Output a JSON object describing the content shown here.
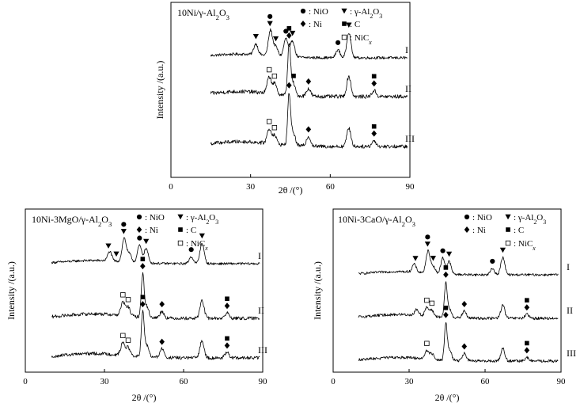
{
  "figure": {
    "xlabel": "2θ /(°)",
    "ylabel": "Intensity /(a.u.)",
    "legend": {
      "nio": "NiO",
      "al2o3": "γ-Al2O3",
      "ni": "Ni",
      "c": "C",
      "nicx": "NiCx"
    },
    "pattern_labels": [
      "I",
      "II",
      "III"
    ]
  },
  "chart_data": [
    {
      "type": "line",
      "title": "10Ni/γ-Al2O3",
      "xlabel": "2θ /(°)",
      "ylabel": "Intensity /(a.u.)",
      "xlim": [
        0,
        90
      ],
      "xticks": [
        0,
        30,
        60,
        90
      ],
      "series": [
        {
          "name": "I",
          "peaks": [
            [
              32.0,
              0.3
            ],
            [
              37.5,
              0.7
            ],
            [
              39.5,
              0.25
            ],
            [
              43.3,
              0.5
            ],
            [
              45.8,
              0.45
            ],
            [
              62.9,
              0.22
            ],
            [
              67.0,
              0.7
            ]
          ],
          "markers": [
            {
              "type": "al2o3",
              "x": 32.0
            },
            {
              "type": "al2o3",
              "x": 37.3
            },
            {
              "type": "nio",
              "x": 37.3,
              "stack": 1
            },
            {
              "type": "al2o3",
              "x": 39.5
            },
            {
              "type": "nio",
              "x": 43.3
            },
            {
              "type": "al2o3",
              "x": 45.8
            },
            {
              "type": "nio",
              "x": 62.9
            },
            {
              "type": "al2o3",
              "x": 67.0
            }
          ]
        },
        {
          "name": "II",
          "peaks": [
            [
              37.0,
              0.32
            ],
            [
              39.0,
              0.2
            ],
            [
              44.5,
              1.0
            ],
            [
              46.0,
              0.25
            ],
            [
              51.8,
              0.15
            ],
            [
              67.0,
              0.4
            ],
            [
              76.5,
              0.12
            ]
          ],
          "markers": [
            {
              "type": "nicx",
              "x": 37.0
            },
            {
              "type": "nicx",
              "x": 39.0
            },
            {
              "type": "ni",
              "x": 44.5
            },
            {
              "type": "c",
              "x": 44.5,
              "stack": 1
            },
            {
              "type": "c",
              "x": 46.2
            },
            {
              "type": "ni",
              "x": 51.8
            },
            {
              "type": "ni",
              "x": 76.5
            },
            {
              "type": "c",
              "x": 76.5,
              "stack": 1
            }
          ]
        },
        {
          "name": "III",
          "peaks": [
            [
              37.0,
              0.3
            ],
            [
              39.0,
              0.18
            ],
            [
              44.5,
              1.05
            ],
            [
              46.0,
              0.28
            ],
            [
              51.8,
              0.2
            ],
            [
              67.0,
              0.38
            ],
            [
              76.5,
              0.12
            ]
          ],
          "markers": [
            {
              "type": "nicx",
              "x": 37.0
            },
            {
              "type": "nicx",
              "x": 39.0
            },
            {
              "type": "ni",
              "x": 44.5
            },
            {
              "type": "ni",
              "x": 51.8
            },
            {
              "type": "ni",
              "x": 76.5
            },
            {
              "type": "c",
              "x": 76.5,
              "stack": 1
            }
          ]
        }
      ]
    },
    {
      "type": "line",
      "title": "10Ni-3MgO/γ-Al2O3",
      "xlabel": "2θ /(°)",
      "ylabel": "Intensity /(a.u.)",
      "xlim": [
        0,
        90
      ],
      "xticks": [
        0,
        30,
        60,
        90
      ],
      "series": [
        {
          "name": "I",
          "peaks": [
            [
              32.0,
              0.3
            ],
            [
              37.5,
              0.75
            ],
            [
              39.5,
              0.25
            ],
            [
              43.3,
              0.55
            ],
            [
              45.8,
              0.45
            ],
            [
              62.9,
              0.22
            ],
            [
              67.0,
              0.65
            ]
          ],
          "markers": [
            {
              "type": "al2o3",
              "x": 31.5
            },
            {
              "type": "al2o3",
              "x": 34.5
            },
            {
              "type": "al2o3",
              "x": 37.3
            },
            {
              "type": "nio",
              "x": 37.3,
              "stack": 1
            },
            {
              "type": "nio",
              "x": 43.3
            },
            {
              "type": "al2o3",
              "x": 45.8
            },
            {
              "type": "nio",
              "x": 62.9
            },
            {
              "type": "al2o3",
              "x": 67.0
            }
          ]
        },
        {
          "name": "II",
          "peaks": [
            [
              37.0,
              0.3
            ],
            [
              39.0,
              0.2
            ],
            [
              44.5,
              0.95
            ],
            [
              46.0,
              0.25
            ],
            [
              51.8,
              0.15
            ],
            [
              67.0,
              0.4
            ],
            [
              76.5,
              0.12
            ]
          ],
          "markers": [
            {
              "type": "nicx",
              "x": 37.0
            },
            {
              "type": "nicx",
              "x": 39.0
            },
            {
              "type": "ni",
              "x": 44.5
            },
            {
              "type": "c",
              "x": 44.5,
              "stack": 1
            },
            {
              "type": "ni",
              "x": 51.8
            },
            {
              "type": "ni",
              "x": 76.5
            },
            {
              "type": "c",
              "x": 76.5,
              "stack": 1
            }
          ]
        },
        {
          "name": "III",
          "peaks": [
            [
              37.0,
              0.28
            ],
            [
              39.0,
              0.18
            ],
            [
              44.5,
              1.0
            ],
            [
              46.0,
              0.28
            ],
            [
              51.8,
              0.2
            ],
            [
              67.0,
              0.4
            ],
            [
              76.5,
              0.12
            ]
          ],
          "markers": [
            {
              "type": "nicx",
              "x": 37.0
            },
            {
              "type": "nicx",
              "x": 39.0
            },
            {
              "type": "ni",
              "x": 44.5
            },
            {
              "type": "c",
              "x": 44.5,
              "stack": 1
            },
            {
              "type": "ni",
              "x": 51.8
            },
            {
              "type": "ni",
              "x": 76.5
            },
            {
              "type": "c",
              "x": 76.5,
              "stack": 1
            }
          ]
        }
      ]
    },
    {
      "type": "line",
      "title": "10Ni-3CaO/γ-Al2O3",
      "xlabel": "2θ /(°)",
      "ylabel": "Intensity /(a.u.)",
      "xlim": [
        0,
        90
      ],
      "xticks": [
        0,
        30,
        60,
        90
      ],
      "series": [
        {
          "name": "I",
          "peaks": [
            [
              32.0,
              0.25
            ],
            [
              37.5,
              0.7
            ],
            [
              39.5,
              0.22
            ],
            [
              43.3,
              0.5
            ],
            [
              45.8,
              0.4
            ],
            [
              62.9,
              0.2
            ],
            [
              67.0,
              0.55
            ]
          ],
          "markers": [
            {
              "type": "al2o3",
              "x": 32.5
            },
            {
              "type": "al2o3",
              "x": 37.3
            },
            {
              "type": "nio",
              "x": 37.3,
              "stack": 1
            },
            {
              "type": "al2o3",
              "x": 39.5
            },
            {
              "type": "nio",
              "x": 43.3
            },
            {
              "type": "al2o3",
              "x": 45.8
            },
            {
              "type": "nio",
              "x": 62.9
            },
            {
              "type": "al2o3",
              "x": 67.0
            }
          ]
        },
        {
          "name": "II",
          "peaks": [
            [
              33.0,
              0.15
            ],
            [
              37.0,
              0.22
            ],
            [
              39.0,
              0.15
            ],
            [
              44.5,
              0.9
            ],
            [
              46.0,
              0.22
            ],
            [
              51.8,
              0.18
            ],
            [
              67.0,
              0.35
            ],
            [
              76.5,
              0.1
            ]
          ],
          "markers": [
            {
              "type": "nicx",
              "x": 37.0
            },
            {
              "type": "nicx",
              "x": 39.0
            },
            {
              "type": "ni",
              "x": 44.5
            },
            {
              "type": "c",
              "x": 44.5,
              "stack": 1
            },
            {
              "type": "ni",
              "x": 51.8
            },
            {
              "type": "ni",
              "x": 76.5
            },
            {
              "type": "c",
              "x": 76.5,
              "stack": 1
            }
          ]
        },
        {
          "name": "III",
          "peaks": [
            [
              37.0,
              0.22
            ],
            [
              39.0,
              0.15
            ],
            [
              44.5,
              1.0
            ],
            [
              46.0,
              0.28
            ],
            [
              51.8,
              0.2
            ],
            [
              67.0,
              0.35
            ],
            [
              76.5,
              0.1
            ]
          ],
          "markers": [
            {
              "type": "nicx",
              "x": 37.0
            },
            {
              "type": "ni",
              "x": 44.5
            },
            {
              "type": "c",
              "x": 44.5,
              "stack": 1
            },
            {
              "type": "ni",
              "x": 51.8
            },
            {
              "type": "ni",
              "x": 76.5
            },
            {
              "type": "c",
              "x": 76.5,
              "stack": 1
            }
          ]
        }
      ]
    }
  ]
}
